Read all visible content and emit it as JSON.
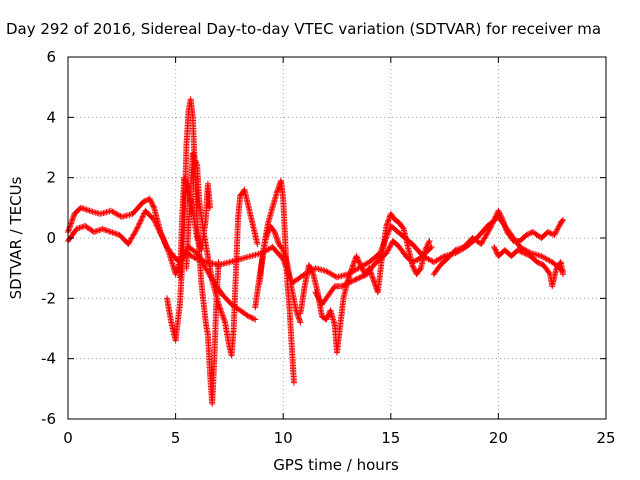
{
  "chart_data": {
    "type": "scatter",
    "title": "Day 292 of 2016, Sidereal Day-to-day VTEC variation (SDTVAR) for receiver ma",
    "xlabel": "GPS time / hours",
    "ylabel": "SDTVAR / TECUs",
    "xlim": [
      0,
      25
    ],
    "ylim": [
      -6,
      6
    ],
    "xticks": [
      0,
      5,
      10,
      15,
      20,
      25
    ],
    "yticks": [
      -6,
      -4,
      -2,
      0,
      2,
      4,
      6
    ],
    "grid": true,
    "marker": "+",
    "color": "#ff0000",
    "series": [
      {
        "name": "SDTVAR",
        "traces": [
          [
            [
              0,
              0.2
            ],
            [
              0.3,
              0.8
            ],
            [
              0.6,
              1.0
            ],
            [
              1.0,
              0.9
            ],
            [
              1.5,
              0.8
            ],
            [
              2.0,
              0.9
            ],
            [
              2.5,
              0.7
            ],
            [
              3.0,
              0.8
            ],
            [
              3.5,
              1.2
            ],
            [
              3.8,
              1.3
            ],
            [
              4.0,
              1.0
            ],
            [
              4.3,
              0.2
            ],
            [
              4.6,
              -0.3
            ],
            [
              4.9,
              -0.6
            ],
            [
              5.2,
              -0.8
            ],
            [
              5.5,
              -0.5
            ],
            [
              6.0,
              -0.7
            ],
            [
              6.5,
              -0.8
            ],
            [
              7.0,
              -0.9
            ],
            [
              7.5,
              -0.8
            ],
            [
              8.0,
              -0.7
            ],
            [
              8.5,
              -0.6
            ],
            [
              9.0,
              -0.5
            ],
            [
              9.5,
              -0.3
            ],
            [
              10.0,
              -0.7
            ],
            [
              10.4,
              -1.5
            ],
            [
              11.0,
              -1.2
            ],
            [
              11.5,
              -1.0
            ],
            [
              12.0,
              -1.1
            ],
            [
              12.5,
              -1.3
            ],
            [
              13.0,
              -1.2
            ],
            [
              13.5,
              -1.0
            ],
            [
              14.0,
              -0.8
            ],
            [
              14.5,
              -0.5
            ],
            [
              15.0,
              0.4
            ],
            [
              15.5,
              0.1
            ],
            [
              16.0,
              -0.2
            ],
            [
              16.5,
              -0.6
            ],
            [
              17.0,
              -0.8
            ],
            [
              17.5,
              -0.6
            ],
            [
              18.0,
              -0.5
            ],
            [
              18.5,
              -0.3
            ],
            [
              19.0,
              0.0
            ],
            [
              19.5,
              0.4
            ],
            [
              20.0,
              0.7
            ],
            [
              20.5,
              0.2
            ],
            [
              21.0,
              -0.3
            ],
            [
              21.5,
              -0.5
            ],
            [
              22.0,
              -0.6
            ],
            [
              22.5,
              -0.8
            ],
            [
              23.0,
              -1.1
            ]
          ],
          [
            [
              0,
              -0.1
            ],
            [
              0.4,
              0.3
            ],
            [
              0.8,
              0.4
            ],
            [
              1.2,
              0.2
            ],
            [
              1.6,
              0.3
            ],
            [
              2.0,
              0.2
            ],
            [
              2.4,
              0.1
            ],
            [
              2.8,
              -0.2
            ],
            [
              3.2,
              0.3
            ],
            [
              3.6,
              0.9
            ],
            [
              4.0,
              0.6
            ],
            [
              4.4,
              0.0
            ],
            [
              4.7,
              -0.5
            ],
            [
              5.0,
              -1.2
            ],
            [
              5.3,
              -0.6
            ],
            [
              5.6,
              -0.3
            ],
            [
              6.0,
              -0.5
            ],
            [
              6.4,
              -1.0
            ],
            [
              6.8,
              -1.5
            ],
            [
              7.2,
              -1.9
            ],
            [
              7.6,
              -2.2
            ],
            [
              8.0,
              -2.4
            ],
            [
              8.4,
              -2.6
            ],
            [
              8.7,
              -2.7
            ]
          ],
          [
            [
              4.6,
              -2.0
            ],
            [
              4.8,
              -2.8
            ],
            [
              5.0,
              -3.4
            ],
            [
              5.2,
              -2.2
            ],
            [
              5.4,
              0.3
            ],
            [
              5.5,
              3.0
            ],
            [
              5.6,
              4.2
            ],
            [
              5.7,
              4.6
            ],
            [
              5.8,
              4.0
            ],
            [
              5.9,
              2.2
            ],
            [
              6.0,
              0.5
            ],
            [
              6.2,
              -1.5
            ],
            [
              6.4,
              -2.8
            ],
            [
              6.5,
              -3.2
            ],
            [
              6.6,
              -4.5
            ],
            [
              6.7,
              -5.5
            ],
            [
              6.8,
              -4.0
            ],
            [
              6.9,
              -2.0
            ],
            [
              7.0,
              -0.8
            ]
          ],
          [
            [
              5.5,
              -1.0
            ],
            [
              5.6,
              0.4
            ],
            [
              5.8,
              2.8
            ],
            [
              6.0,
              2.4
            ],
            [
              6.1,
              1.2
            ],
            [
              6.3,
              0.2
            ],
            [
              6.5,
              -0.6
            ],
            [
              6.7,
              -1.4
            ],
            [
              7.0,
              -2.2
            ],
            [
              7.3,
              -2.8
            ],
            [
              7.5,
              -3.6
            ],
            [
              7.6,
              -3.9
            ],
            [
              7.7,
              -3.0
            ],
            [
              7.8,
              -1.2
            ],
            [
              7.9,
              0.6
            ],
            [
              8.0,
              1.4
            ],
            [
              8.2,
              1.6
            ],
            [
              8.4,
              1.0
            ],
            [
              8.6,
              0.4
            ],
            [
              8.8,
              -0.2
            ]
          ],
          [
            [
              5.2,
              -1.3
            ],
            [
              5.3,
              0.6
            ],
            [
              5.4,
              2.0
            ],
            [
              5.6,
              1.6
            ],
            [
              5.8,
              0.9
            ],
            [
              6.0,
              0.0
            ],
            [
              6.2,
              -0.4
            ],
            [
              6.4,
              0.6
            ],
            [
              6.5,
              1.8
            ],
            [
              6.6,
              1.0
            ]
          ],
          [
            [
              8.9,
              -1.5
            ],
            [
              9.1,
              -0.3
            ],
            [
              9.3,
              0.5
            ],
            [
              9.5,
              1.0
            ],
            [
              9.7,
              1.5
            ],
            [
              9.9,
              1.9
            ],
            [
              10.0,
              1.3
            ],
            [
              10.1,
              -0.2
            ],
            [
              10.2,
              -1.5
            ],
            [
              10.3,
              -2.4
            ],
            [
              10.4,
              -3.6
            ],
            [
              10.5,
              -4.8
            ]
          ],
          [
            [
              8.7,
              -2.3
            ],
            [
              8.8,
              -1.8
            ],
            [
              9.0,
              -0.8
            ],
            [
              9.2,
              0.0
            ],
            [
              9.4,
              0.4
            ],
            [
              9.6,
              0.2
            ],
            [
              9.8,
              -0.2
            ],
            [
              10.0,
              -0.4
            ],
            [
              10.2,
              -0.9
            ],
            [
              10.4,
              -1.7
            ],
            [
              10.6,
              -2.4
            ],
            [
              10.8,
              -2.8
            ]
          ],
          [
            [
              10.8,
              -2.5
            ],
            [
              11.0,
              -1.6
            ],
            [
              11.2,
              -0.9
            ],
            [
              11.4,
              -1.2
            ],
            [
              11.6,
              -1.8
            ],
            [
              11.8,
              -2.6
            ],
            [
              12.0,
              -2.7
            ],
            [
              12.2,
              -2.4
            ],
            [
              12.4,
              -2.9
            ],
            [
              12.5,
              -3.8
            ],
            [
              12.6,
              -3.2
            ],
            [
              12.8,
              -2.0
            ],
            [
              13.0,
              -1.4
            ],
            [
              13.2,
              -1.0
            ],
            [
              13.4,
              -0.6
            ],
            [
              13.6,
              -0.9
            ],
            [
              13.8,
              -1.2
            ],
            [
              14.0,
              -1.0
            ],
            [
              14.2,
              -1.4
            ],
            [
              14.4,
              -1.8
            ],
            [
              14.6,
              -0.6
            ],
            [
              14.8,
              0.4
            ],
            [
              15.0,
              0.8
            ],
            [
              15.2,
              0.6
            ],
            [
              15.4,
              0.5
            ],
            [
              15.6,
              0.3
            ],
            [
              15.8,
              -0.3
            ],
            [
              16.0,
              -0.9
            ],
            [
              16.2,
              -1.2
            ],
            [
              16.4,
              -1.0
            ],
            [
              16.6,
              -0.4
            ],
            [
              16.8,
              -0.1
            ]
          ],
          [
            [
              11.5,
              -1.8
            ],
            [
              11.8,
              -2.2
            ],
            [
              12.1,
              -1.9
            ],
            [
              12.4,
              -1.6
            ],
            [
              12.7,
              -1.6
            ],
            [
              13.0,
              -1.5
            ],
            [
              13.3,
              -1.4
            ],
            [
              13.6,
              -1.3
            ],
            [
              13.9,
              -1.2
            ],
            [
              14.2,
              -0.9
            ],
            [
              14.5,
              -0.7
            ],
            [
              14.8,
              -0.5
            ],
            [
              15.1,
              -0.1
            ],
            [
              15.4,
              -0.3
            ],
            [
              15.7,
              -0.6
            ],
            [
              16.0,
              -0.8
            ],
            [
              16.3,
              -0.7
            ],
            [
              16.6,
              -0.5
            ],
            [
              16.9,
              -0.3
            ]
          ],
          [
            [
              17.0,
              -1.2
            ],
            [
              17.3,
              -0.9
            ],
            [
              17.6,
              -0.7
            ],
            [
              18.0,
              -0.4
            ],
            [
              18.4,
              -0.3
            ],
            [
              18.8,
              0.0
            ],
            [
              19.2,
              -0.2
            ],
            [
              19.6,
              0.3
            ],
            [
              20.0,
              0.9
            ],
            [
              20.2,
              0.6
            ],
            [
              20.4,
              0.2
            ],
            [
              20.7,
              -0.1
            ],
            [
              21.0,
              -0.1
            ],
            [
              21.3,
              0.1
            ],
            [
              21.6,
              0.2
            ],
            [
              22.0,
              0.0
            ],
            [
              22.3,
              0.2
            ],
            [
              22.6,
              0.1
            ],
            [
              22.9,
              0.5
            ],
            [
              23.0,
              0.6
            ]
          ],
          [
            [
              19.8,
              -0.3
            ],
            [
              20.0,
              -0.6
            ],
            [
              20.3,
              -0.4
            ],
            [
              20.6,
              -0.6
            ],
            [
              20.9,
              -0.4
            ],
            [
              21.2,
              -0.5
            ],
            [
              21.5,
              -0.6
            ],
            [
              21.8,
              -0.8
            ],
            [
              22.1,
              -0.9
            ],
            [
              22.4,
              -1.2
            ],
            [
              22.5,
              -1.6
            ],
            [
              22.7,
              -1.0
            ],
            [
              22.9,
              -0.8
            ],
            [
              23.0,
              -1.2
            ]
          ]
        ]
      }
    ]
  }
}
